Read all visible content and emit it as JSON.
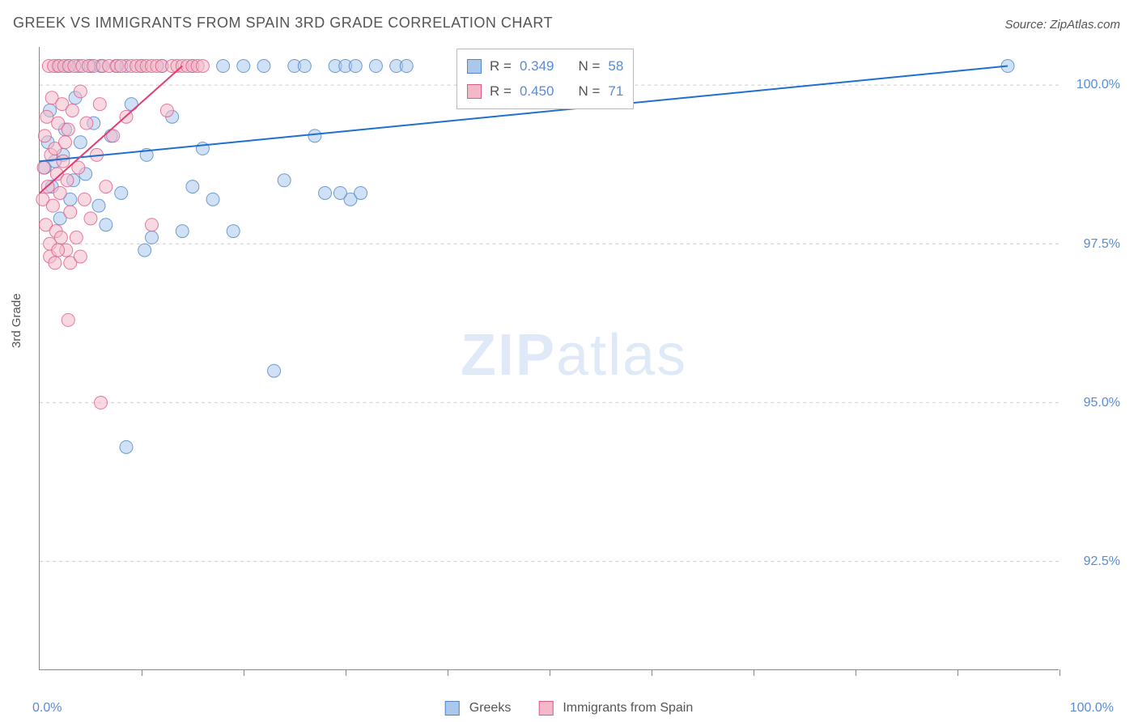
{
  "title": "GREEK VS IMMIGRANTS FROM SPAIN 3RD GRADE CORRELATION CHART",
  "source": "Source: ZipAtlas.com",
  "y_axis_label": "3rd Grade",
  "chart": {
    "type": "scatter",
    "x_min": 0.0,
    "x_max": 100.0,
    "y_min": 90.8,
    "y_max": 100.6,
    "x_ticks_pct": [
      10,
      20,
      30,
      40,
      50,
      60,
      70,
      80,
      90,
      100
    ],
    "y_ticks": [
      {
        "value": 92.5,
        "label": "92.5%"
      },
      {
        "value": 95.0,
        "label": "95.0%"
      },
      {
        "value": 97.5,
        "label": "97.5%"
      },
      {
        "value": 100.0,
        "label": "100.0%"
      }
    ],
    "x_min_label": "0.0%",
    "x_max_label": "100.0%",
    "grid_color": "#cccccc",
    "axis_color": "#888888",
    "background_color": "#ffffff",
    "marker_radius": 8,
    "marker_opacity": 0.55,
    "line_width": 2,
    "series": [
      {
        "name": "Greeks",
        "fill": "#a9c8ec",
        "stroke": "#4f86c6",
        "line_color": "#1f6fd0",
        "R": "0.349",
        "N": "58",
        "regression": {
          "x1": 0,
          "y1": 98.8,
          "x2": 95,
          "y2": 100.3
        },
        "points": [
          [
            0.5,
            98.7
          ],
          [
            0.8,
            99.1
          ],
          [
            1.0,
            99.6
          ],
          [
            1.2,
            98.4
          ],
          [
            1.5,
            98.8
          ],
          [
            1.8,
            100.3
          ],
          [
            2.0,
            97.9
          ],
          [
            2.3,
            98.9
          ],
          [
            2.5,
            99.3
          ],
          [
            2.8,
            100.3
          ],
          [
            3.0,
            98.2
          ],
          [
            3.3,
            98.5
          ],
          [
            3.5,
            99.8
          ],
          [
            3.8,
            100.3
          ],
          [
            4.0,
            99.1
          ],
          [
            4.5,
            98.6
          ],
          [
            5.0,
            100.3
          ],
          [
            5.3,
            99.4
          ],
          [
            5.8,
            98.1
          ],
          [
            6.0,
            100.3
          ],
          [
            6.5,
            97.8
          ],
          [
            7.0,
            99.2
          ],
          [
            7.5,
            100.3
          ],
          [
            8.0,
            98.3
          ],
          [
            8.5,
            100.3
          ],
          [
            9.0,
            99.7
          ],
          [
            10.0,
            100.3
          ],
          [
            10.5,
            98.9
          ],
          [
            11.0,
            97.6
          ],
          [
            12.0,
            100.3
          ],
          [
            13.0,
            99.5
          ],
          [
            14.0,
            97.7
          ],
          [
            15.0,
            100.3
          ],
          [
            16.0,
            99.0
          ],
          [
            17.0,
            98.2
          ],
          [
            18.0,
            100.3
          ],
          [
            19.0,
            97.7
          ],
          [
            20.0,
            100.3
          ],
          [
            22.0,
            100.3
          ],
          [
            24.0,
            98.5
          ],
          [
            25.0,
            100.3
          ],
          [
            26.0,
            100.3
          ],
          [
            27.0,
            99.2
          ],
          [
            28.0,
            98.3
          ],
          [
            29.0,
            100.3
          ],
          [
            30.0,
            100.3
          ],
          [
            30.5,
            98.2
          ],
          [
            31.0,
            100.3
          ],
          [
            33.0,
            100.3
          ],
          [
            35.0,
            100.3
          ],
          [
            36.0,
            100.3
          ],
          [
            23.0,
            95.5
          ],
          [
            8.5,
            94.3
          ],
          [
            10.3,
            97.4
          ],
          [
            15.0,
            98.4
          ],
          [
            29.5,
            98.3
          ],
          [
            31.5,
            98.3
          ],
          [
            95.0,
            100.3
          ]
        ]
      },
      {
        "name": "Immigrants from Spain",
        "fill": "#f4b9c9",
        "stroke": "#e05a87",
        "line_color": "#e23d72",
        "R": "0.450",
        "N": "71",
        "regression": {
          "x1": 0,
          "y1": 98.3,
          "x2": 14,
          "y2": 100.3
        },
        "points": [
          [
            0.3,
            98.2
          ],
          [
            0.4,
            98.7
          ],
          [
            0.5,
            99.2
          ],
          [
            0.6,
            97.8
          ],
          [
            0.7,
            99.5
          ],
          [
            0.8,
            98.4
          ],
          [
            0.9,
            100.3
          ],
          [
            1.0,
            97.5
          ],
          [
            1.1,
            98.9
          ],
          [
            1.2,
            99.8
          ],
          [
            1.3,
            98.1
          ],
          [
            1.4,
            100.3
          ],
          [
            1.5,
            99.0
          ],
          [
            1.6,
            97.7
          ],
          [
            1.7,
            98.6
          ],
          [
            1.8,
            99.4
          ],
          [
            1.9,
            100.3
          ],
          [
            2.0,
            98.3
          ],
          [
            2.1,
            97.6
          ],
          [
            2.2,
            99.7
          ],
          [
            2.3,
            98.8
          ],
          [
            2.4,
            100.3
          ],
          [
            2.5,
            99.1
          ],
          [
            2.6,
            97.4
          ],
          [
            2.7,
            98.5
          ],
          [
            2.8,
            99.3
          ],
          [
            2.9,
            100.3
          ],
          [
            3.0,
            98.0
          ],
          [
            3.2,
            99.6
          ],
          [
            3.4,
            100.3
          ],
          [
            3.6,
            97.6
          ],
          [
            3.8,
            98.7
          ],
          [
            4.0,
            99.9
          ],
          [
            4.2,
            100.3
          ],
          [
            4.4,
            98.2
          ],
          [
            4.6,
            99.4
          ],
          [
            4.8,
            100.3
          ],
          [
            5.0,
            97.9
          ],
          [
            5.3,
            100.3
          ],
          [
            5.6,
            98.9
          ],
          [
            5.9,
            99.7
          ],
          [
            6.2,
            100.3
          ],
          [
            6.5,
            98.4
          ],
          [
            6.8,
            100.3
          ],
          [
            7.2,
            99.2
          ],
          [
            7.6,
            100.3
          ],
          [
            8.0,
            100.3
          ],
          [
            8.5,
            99.5
          ],
          [
            9.0,
            100.3
          ],
          [
            9.5,
            100.3
          ],
          [
            10.0,
            100.3
          ],
          [
            10.5,
            100.3
          ],
          [
            11.0,
            100.3
          ],
          [
            11.5,
            100.3
          ],
          [
            12.0,
            100.3
          ],
          [
            12.5,
            99.6
          ],
          [
            13.0,
            100.3
          ],
          [
            13.5,
            100.3
          ],
          [
            14.0,
            100.3
          ],
          [
            14.5,
            100.3
          ],
          [
            15.0,
            100.3
          ],
          [
            15.5,
            100.3
          ],
          [
            16.0,
            100.3
          ],
          [
            2.8,
            96.3
          ],
          [
            3.0,
            97.2
          ],
          [
            4.0,
            97.3
          ],
          [
            1.0,
            97.3
          ],
          [
            1.5,
            97.2
          ],
          [
            11.0,
            97.8
          ],
          [
            6.0,
            95.0
          ],
          [
            1.8,
            97.4
          ]
        ]
      }
    ]
  },
  "bottom_legend": {
    "series1_label": "Greeks",
    "series2_label": "Immigrants from Spain"
  },
  "stats_box": {
    "R_prefix": "R = ",
    "N_prefix": "N = "
  },
  "watermark": {
    "zip": "ZIP",
    "atlas": "atlas"
  }
}
